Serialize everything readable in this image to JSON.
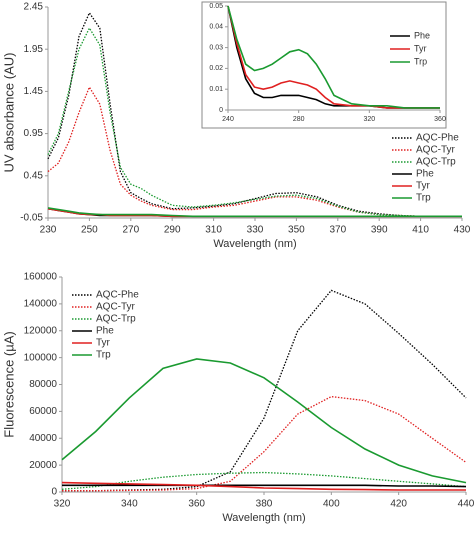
{
  "chart_data": [
    {
      "type": "line",
      "x_label": "Wavelength (nm)",
      "y_label": "UV absorbance (AU)",
      "x": [
        230,
        235,
        240,
        245,
        250,
        255,
        260,
        265,
        270,
        275,
        280,
        290,
        300,
        310,
        320,
        330,
        340,
        350,
        360,
        370,
        380,
        390,
        400,
        410,
        420,
        430
      ],
      "xlim": [
        230,
        430
      ],
      "xticks": [
        230,
        250,
        270,
        290,
        310,
        330,
        350,
        370,
        390,
        410,
        430
      ],
      "ylim": [
        -0.05,
        2.45
      ],
      "yticks": [
        -0.05,
        0.45,
        0.95,
        1.45,
        1.95,
        2.45
      ],
      "legend": "lower right",
      "series": [
        {
          "name": "AQC-Phe",
          "color": "#000000",
          "style": "dotted",
          "values": [
            0.65,
            0.9,
            1.4,
            2.1,
            2.38,
            2.2,
            1.3,
            0.5,
            0.25,
            0.18,
            0.12,
            0.06,
            0.07,
            0.09,
            0.12,
            0.18,
            0.24,
            0.25,
            0.2,
            0.1,
            0.03,
            0.0,
            -0.02,
            -0.03,
            -0.03,
            -0.03
          ]
        },
        {
          "name": "AQC-Tyr",
          "color": "#e02020",
          "style": "dotted",
          "values": [
            0.5,
            0.6,
            0.85,
            1.2,
            1.5,
            1.3,
            0.75,
            0.35,
            0.22,
            0.15,
            0.1,
            0.05,
            0.05,
            0.08,
            0.1,
            0.15,
            0.2,
            0.2,
            0.16,
            0.08,
            0.02,
            -0.01,
            -0.02,
            -0.03,
            -0.03,
            -0.03
          ]
        },
        {
          "name": "AQC-Trp",
          "color": "#1a9a30",
          "style": "dotted",
          "values": [
            0.7,
            0.95,
            1.45,
            1.95,
            2.2,
            2.0,
            1.2,
            0.55,
            0.35,
            0.3,
            0.22,
            0.1,
            0.08,
            0.1,
            0.13,
            0.17,
            0.21,
            0.22,
            0.18,
            0.09,
            0.02,
            -0.01,
            -0.02,
            -0.03,
            -0.03,
            -0.03
          ]
        },
        {
          "name": "Phe",
          "color": "#000000",
          "style": "solid",
          "values": [
            0.06,
            0.04,
            0.02,
            0.0,
            -0.01,
            -0.02,
            -0.02,
            -0.02,
            -0.02,
            -0.02,
            -0.02,
            -0.03,
            -0.03,
            -0.03,
            -0.03,
            -0.03,
            -0.03,
            -0.03,
            -0.03,
            -0.03,
            -0.03,
            -0.03,
            -0.03,
            -0.03,
            -0.03,
            -0.03
          ]
        },
        {
          "name": "Tyr",
          "color": "#e02020",
          "style": "solid",
          "values": [
            0.06,
            0.04,
            0.02,
            0.0,
            -0.01,
            -0.01,
            -0.02,
            -0.02,
            -0.02,
            -0.02,
            -0.02,
            -0.03,
            -0.03,
            -0.03,
            -0.03,
            -0.03,
            -0.03,
            -0.03,
            -0.03,
            -0.03,
            -0.03,
            -0.03,
            -0.03,
            -0.03,
            -0.03,
            -0.03
          ]
        },
        {
          "name": "Trp",
          "color": "#1a9a30",
          "style": "solid",
          "values": [
            0.07,
            0.05,
            0.03,
            0.01,
            0.0,
            -0.01,
            -0.01,
            -0.01,
            -0.01,
            -0.01,
            -0.01,
            -0.02,
            -0.03,
            -0.03,
            -0.03,
            -0.03,
            -0.03,
            -0.03,
            -0.03,
            -0.03,
            -0.03,
            -0.03,
            -0.03,
            -0.03,
            -0.03,
            -0.03
          ]
        }
      ]
    },
    {
      "type": "line",
      "x": [
        240,
        245,
        250,
        255,
        260,
        265,
        270,
        275,
        280,
        285,
        290,
        295,
        300,
        310,
        320,
        330,
        340,
        350,
        360
      ],
      "xlim": [
        240,
        360
      ],
      "xticks": [
        240,
        280,
        320,
        360
      ],
      "ylim": [
        0,
        0.05
      ],
      "yticks": [
        0,
        0.01,
        0.02,
        0.03,
        0.04,
        0.05
      ],
      "legend": "right",
      "series": [
        {
          "name": "Phe",
          "color": "#000000",
          "style": "solid",
          "values": [
            0.05,
            0.03,
            0.015,
            0.008,
            0.006,
            0.006,
            0.007,
            0.007,
            0.007,
            0.006,
            0.005,
            0.003,
            0.002,
            0.002,
            0.002,
            0.001,
            0.001,
            0.001,
            0.001
          ]
        },
        {
          "name": "Tyr",
          "color": "#e02020",
          "style": "solid",
          "values": [
            0.05,
            0.032,
            0.017,
            0.011,
            0.01,
            0.011,
            0.013,
            0.014,
            0.013,
            0.012,
            0.01,
            0.006,
            0.003,
            0.002,
            0.002,
            0.001,
            0.001,
            0.001,
            0.001
          ]
        },
        {
          "name": "Trp",
          "color": "#1a9a30",
          "style": "solid",
          "values": [
            0.05,
            0.034,
            0.022,
            0.019,
            0.02,
            0.022,
            0.025,
            0.028,
            0.029,
            0.027,
            0.022,
            0.015,
            0.007,
            0.003,
            0.002,
            0.002,
            0.001,
            0.001,
            0.001
          ]
        }
      ]
    },
    {
      "type": "line",
      "x_label": "Wavelength (nm)",
      "y_label": "Fluorescence (µA)",
      "x": [
        320,
        330,
        340,
        350,
        360,
        370,
        380,
        390,
        400,
        410,
        420,
        430,
        440
      ],
      "xlim": [
        320,
        440
      ],
      "xticks": [
        320,
        340,
        360,
        380,
        400,
        420,
        440
      ],
      "ylim": [
        0,
        160000
      ],
      "yticks": [
        0,
        20000,
        40000,
        60000,
        80000,
        100000,
        120000,
        140000,
        160000
      ],
      "legend": "upper left",
      "series": [
        {
          "name": "AQC-Phe",
          "color": "#000000",
          "style": "dotted",
          "values": [
            1000,
            1000,
            1500,
            2000,
            4000,
            15000,
            55000,
            120000,
            150000,
            140000,
            118000,
            95000,
            70000
          ]
        },
        {
          "name": "AQC-Tyr",
          "color": "#e02020",
          "style": "dotted",
          "values": [
            1000,
            1000,
            1200,
            1500,
            2500,
            8000,
            30000,
            58000,
            71000,
            68000,
            58000,
            40000,
            22000
          ]
        },
        {
          "name": "AQC-Trp",
          "color": "#1a9a30",
          "style": "dotted",
          "values": [
            2000,
            4000,
            8000,
            11000,
            13000,
            14000,
            14500,
            13500,
            12000,
            10000,
            8000,
            6000,
            4000
          ]
        },
        {
          "name": "Phe",
          "color": "#000000",
          "style": "solid",
          "values": [
            5000,
            5000,
            5000,
            5000,
            5000,
            5000,
            5000,
            5000,
            5000,
            5000,
            4500,
            4500,
            4000
          ]
        },
        {
          "name": "Tyr",
          "color": "#e02020",
          "style": "solid",
          "values": [
            7000,
            6500,
            6000,
            5500,
            5000,
            4000,
            3000,
            2500,
            2000,
            1800,
            1500,
            1500,
            1500
          ]
        },
        {
          "name": "Trp",
          "color": "#1a9a30",
          "style": "solid",
          "values": [
            24000,
            45000,
            70000,
            92000,
            99000,
            96000,
            85000,
            67000,
            48000,
            32000,
            20000,
            12000,
            7000
          ]
        }
      ]
    }
  ]
}
